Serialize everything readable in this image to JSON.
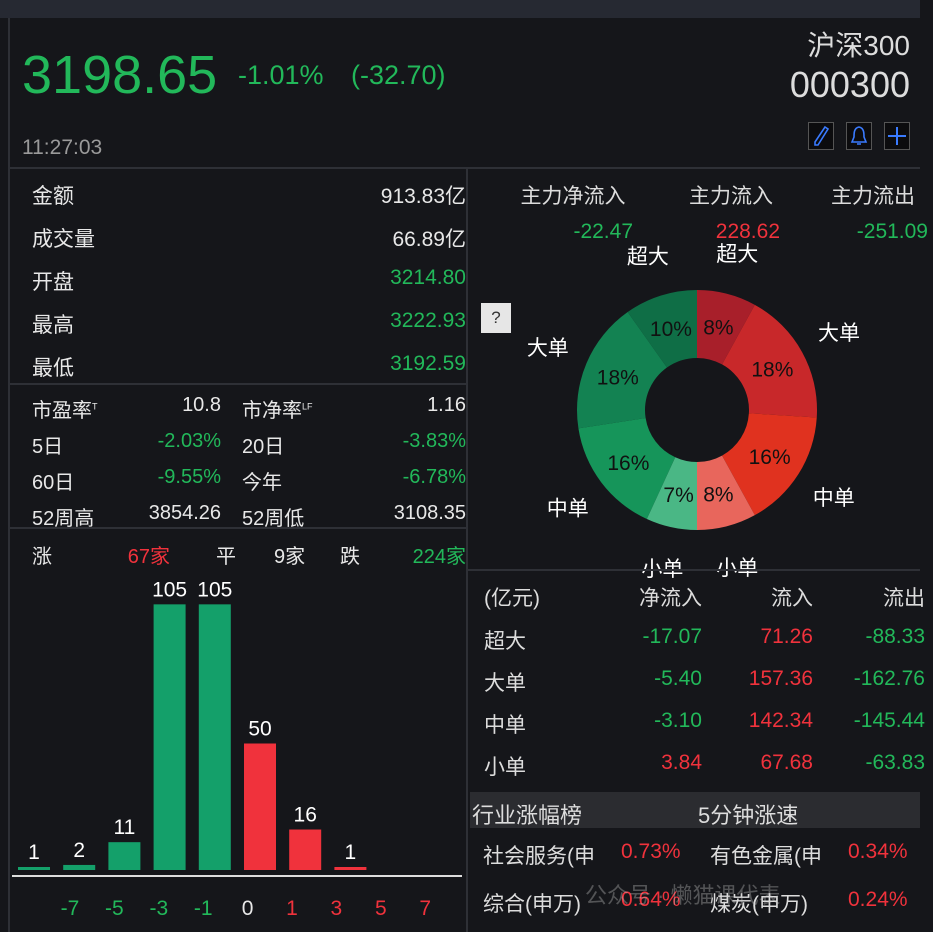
{
  "header": {
    "price": "3198.65",
    "change_pct": "-1.01%",
    "change_abs": "(-32.70)",
    "time": "11:27:03",
    "name": "沪深300",
    "code": "000300",
    "icons": [
      "pencil-icon",
      "bell-icon",
      "plus-icon"
    ]
  },
  "stats": [
    {
      "label": "金额",
      "value": "913.83亿",
      "color": "white"
    },
    {
      "label": "成交量",
      "value": "66.89亿",
      "color": "white"
    },
    {
      "label": "开盘",
      "value": "3214.80",
      "color": "green"
    },
    {
      "label": "最高",
      "value": "3222.93",
      "color": "green"
    },
    {
      "label": "最低",
      "value": "3192.59",
      "color": "green"
    }
  ],
  "ratios": [
    {
      "l1": "市盈率",
      "sup1": "T",
      "v1": "10.8",
      "c1": "white",
      "l2": "市净率",
      "sup2": "LF",
      "v2": "1.16",
      "c2": "white"
    },
    {
      "l1": "5日",
      "v1": "-2.03%",
      "c1": "green",
      "l2": "20日",
      "v2": "-3.83%",
      "c2": "green"
    },
    {
      "l1": "60日",
      "v1": "-9.55%",
      "c1": "green",
      "l2": "今年",
      "v2": "-6.78%",
      "c2": "green"
    },
    {
      "l1": "52周高",
      "v1": "3854.26",
      "c1": "white",
      "l2": "52周低",
      "v2": "3108.35",
      "c2": "white"
    }
  ],
  "breadth": {
    "up_label": "涨",
    "up": "67家",
    "flat_label": "平",
    "flat": "9家",
    "down_label": "跌",
    "down": "224家"
  },
  "chart_data": [
    {
      "type": "bar",
      "values": [
        1,
        2,
        11,
        105,
        105,
        50,
        16,
        1
      ],
      "colors": [
        "#14a06a",
        "#14a06a",
        "#14a06a",
        "#14a06a",
        "#14a06a",
        "#f0323c",
        "#f0323c",
        "#f0323c"
      ],
      "tick_labels": [
        "-7",
        "-5",
        "-3",
        "-1",
        "0",
        "1",
        "3",
        "5",
        "7"
      ],
      "tick_colors": [
        "green",
        "green",
        "green",
        "green",
        "white",
        "red",
        "red",
        "red",
        "red"
      ]
    },
    {
      "type": "pie",
      "donut": true,
      "inflow": {
        "labels": [
          "超大",
          "大单",
          "中单",
          "小单"
        ],
        "values": [
          8,
          18,
          16,
          8
        ],
        "value_labels": [
          "8%",
          "18%",
          "16%",
          "8%"
        ],
        "colors": [
          "#a81f2a",
          "#c8282a",
          "#e0321f",
          "#e8665c"
        ]
      },
      "outflow": {
        "labels": [
          "超大",
          "大单",
          "中单",
          "小单"
        ],
        "values": [
          10,
          18,
          16,
          7
        ],
        "value_labels": [
          "10%",
          "18%",
          "16%",
          "7%"
        ],
        "colors": [
          "#0f6e46",
          "#138252",
          "#16955a",
          "#4ab785"
        ]
      }
    }
  ],
  "main_flow": {
    "headers": [
      "主力净流入",
      "主力流入",
      "主力流出"
    ],
    "values": [
      "-22.47",
      "228.62",
      "-251.09"
    ],
    "help": "?"
  },
  "flow_table": {
    "headers": [
      "(亿元)",
      "净流入",
      "流入",
      "流出"
    ],
    "rows": [
      {
        "name": "超大",
        "net": "-17.07",
        "in": "71.26",
        "out": "-88.33",
        "nc": "green"
      },
      {
        "name": "大单",
        "net": "-5.40",
        "in": "157.36",
        "out": "-162.76",
        "nc": "green"
      },
      {
        "name": "中单",
        "net": "-3.10",
        "in": "142.34",
        "out": "-145.44",
        "nc": "green"
      },
      {
        "name": "小单",
        "net": "3.84",
        "in": "67.68",
        "out": "-63.83",
        "nc": "red"
      }
    ]
  },
  "industry": {
    "tabs": [
      "行业涨幅榜",
      "5分钟涨速"
    ],
    "rows": [
      {
        "n1": "社会服务(申",
        "v1": "0.73%",
        "n2": "有色金属(申",
        "v2": "0.34%"
      },
      {
        "n1": "综合(申万)",
        "v1": "0.64%",
        "n2": "煤炭(申万)",
        "v2": "0.24%"
      }
    ]
  },
  "watermark": "公众号 · 懒猫课代表",
  "colors": {
    "green": "#22b85a",
    "red": "#f0323c",
    "white": "#e8e8e8"
  }
}
